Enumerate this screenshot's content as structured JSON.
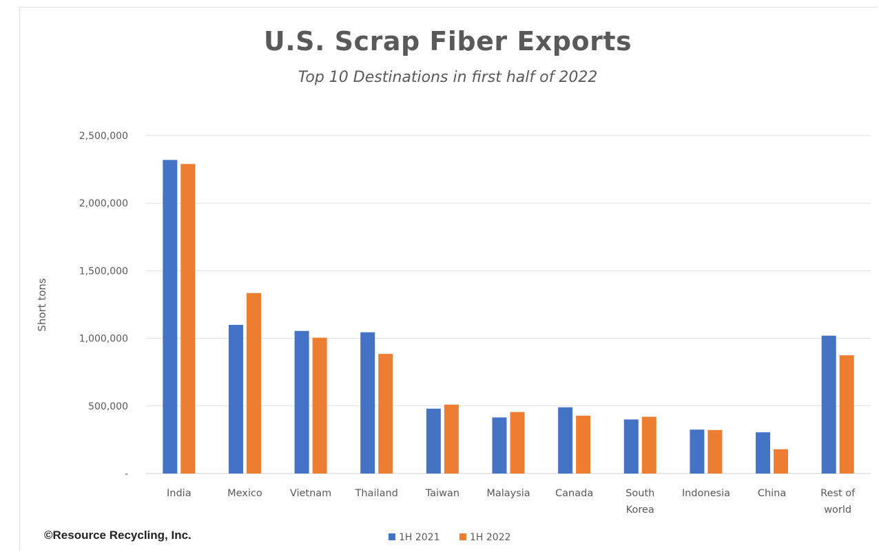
{
  "chart_data": {
    "type": "bar",
    "title": "U.S. Scrap Fiber Exports",
    "subtitle": "Top 10 Destinations in first half of 2022",
    "xlabel": "",
    "ylabel": "Short tons",
    "ylim": [
      0,
      2500000
    ],
    "yticks": [
      0,
      500000,
      1000000,
      1500000,
      2000000,
      2500000
    ],
    "ytick_labels": [
      "-",
      "500,000",
      "1,000,000",
      "1,500,000",
      "2,000,000",
      "2,500,000"
    ],
    "grid": true,
    "legend_position": "bottom",
    "categories": [
      [
        "India"
      ],
      [
        "Mexico"
      ],
      [
        "Vietnam"
      ],
      [
        "Thailand"
      ],
      [
        "Taiwan"
      ],
      [
        "Malaysia"
      ],
      [
        "Canada"
      ],
      [
        "South",
        "Korea"
      ],
      [
        "Indonesia"
      ],
      [
        "China"
      ],
      [
        "Rest of",
        "world"
      ]
    ],
    "series": [
      {
        "name": "1H 2021",
        "color": "#4472C4",
        "values": [
          2320000,
          1100000,
          1055000,
          1045000,
          480000,
          415000,
          490000,
          400000,
          325000,
          305000,
          1020000
        ]
      },
      {
        "name": "1H 2022",
        "color": "#ED7D31",
        "values": [
          2290000,
          1335000,
          1005000,
          885000,
          510000,
          455000,
          428000,
          420000,
          322000,
          180000,
          875000
        ]
      }
    ]
  },
  "credit": "©Resource Recycling, Inc."
}
